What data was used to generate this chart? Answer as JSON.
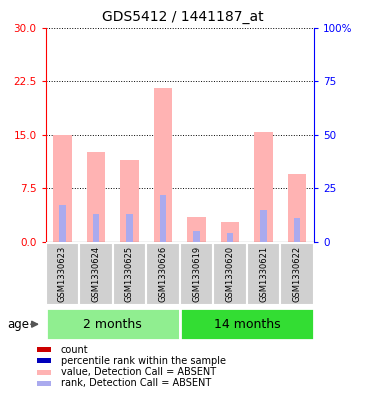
{
  "title": "GDS5412 / 1441187_at",
  "samples": [
    "GSM1330623",
    "GSM1330624",
    "GSM1330625",
    "GSM1330626",
    "GSM1330619",
    "GSM1330620",
    "GSM1330621",
    "GSM1330622"
  ],
  "group1_label": "2 months",
  "group2_label": "14 months",
  "value_absent": [
    15.0,
    12.5,
    11.5,
    21.5,
    3.5,
    2.8,
    15.3,
    9.5
  ],
  "rank_absent_pct": [
    17.0,
    13.0,
    13.0,
    22.0,
    5.0,
    4.0,
    15.0,
    11.0
  ],
  "ylim_left": [
    0,
    30
  ],
  "ylim_right": [
    0,
    100
  ],
  "yticks_left": [
    0,
    7.5,
    15,
    22.5,
    30
  ],
  "yticks_right_vals": [
    0,
    25,
    50,
    75,
    100
  ],
  "yticks_right_labels": [
    "0",
    "25",
    "50",
    "75",
    "100%"
  ],
  "bar_width": 0.55,
  "rank_bar_width": 0.2,
  "color_value_absent": "#ffb3b3",
  "color_rank_absent": "#aaaaee",
  "color_count": "#cc0000",
  "color_percentile": "#0000bb",
  "color_group1": "#90ee90",
  "color_group2": "#33dd33",
  "color_sample_bg": "#d0d0d0",
  "title_fontsize": 10,
  "tick_fontsize": 7.5,
  "sample_fontsize": 6.0,
  "legend_fontsize": 7.0,
  "group_fontsize": 9
}
